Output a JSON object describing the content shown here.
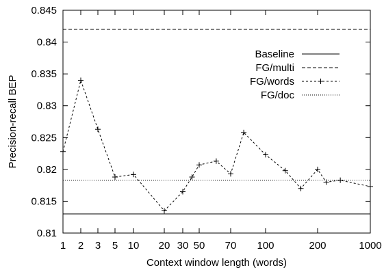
{
  "chart_data": {
    "type": "line",
    "xlabel": "Context window length (words)",
    "ylabel": "Precision-recall BEP",
    "ylim": [
      0.81,
      0.845
    ],
    "yticks": [
      "0.81",
      "0.815",
      "0.82",
      "0.825",
      "0.83",
      "0.835",
      "0.84",
      "0.845"
    ],
    "xticks": [
      "1",
      "2",
      "3",
      "5",
      "10",
      "20",
      "30",
      "50",
      "70",
      "100",
      "200",
      "1000"
    ],
    "grid": false,
    "legend_position": "top-right",
    "legend": [
      "Baseline",
      "FG/multi",
      "FG/words",
      "FG/doc"
    ],
    "series": [
      {
        "name": "Baseline",
        "style": "solid",
        "value": 0.813
      },
      {
        "name": "FG/multi",
        "style": "dashed",
        "value": 0.842
      },
      {
        "name": "FG/words",
        "style": "dashed-crosses",
        "points": [
          {
            "x": 1,
            "y": 0.8228
          },
          {
            "x": 2,
            "y": 0.834
          },
          {
            "x": 3,
            "y": 0.8263
          },
          {
            "x": 5,
            "y": 0.8188
          },
          {
            "x": 10,
            "y": 0.8192
          },
          {
            "x": 20,
            "y": 0.8135
          },
          {
            "x": 30,
            "y": 0.8165
          },
          {
            "x": 40,
            "y": 0.8188
          },
          {
            "x": 50,
            "y": 0.8207
          },
          {
            "x": 60,
            "y": 0.8213
          },
          {
            "x": 70,
            "y": 0.8193
          },
          {
            "x": 80,
            "y": 0.8258
          },
          {
            "x": 100,
            "y": 0.8223
          },
          {
            "x": 130,
            "y": 0.8198
          },
          {
            "x": 160,
            "y": 0.817
          },
          {
            "x": 200,
            "y": 0.82
          },
          {
            "x": 260,
            "y": 0.818
          },
          {
            "x": 400,
            "y": 0.8183
          },
          {
            "x": 1000,
            "y": 0.8173
          }
        ]
      },
      {
        "name": "FG/doc",
        "style": "dotted",
        "value": 0.8183
      }
    ]
  }
}
